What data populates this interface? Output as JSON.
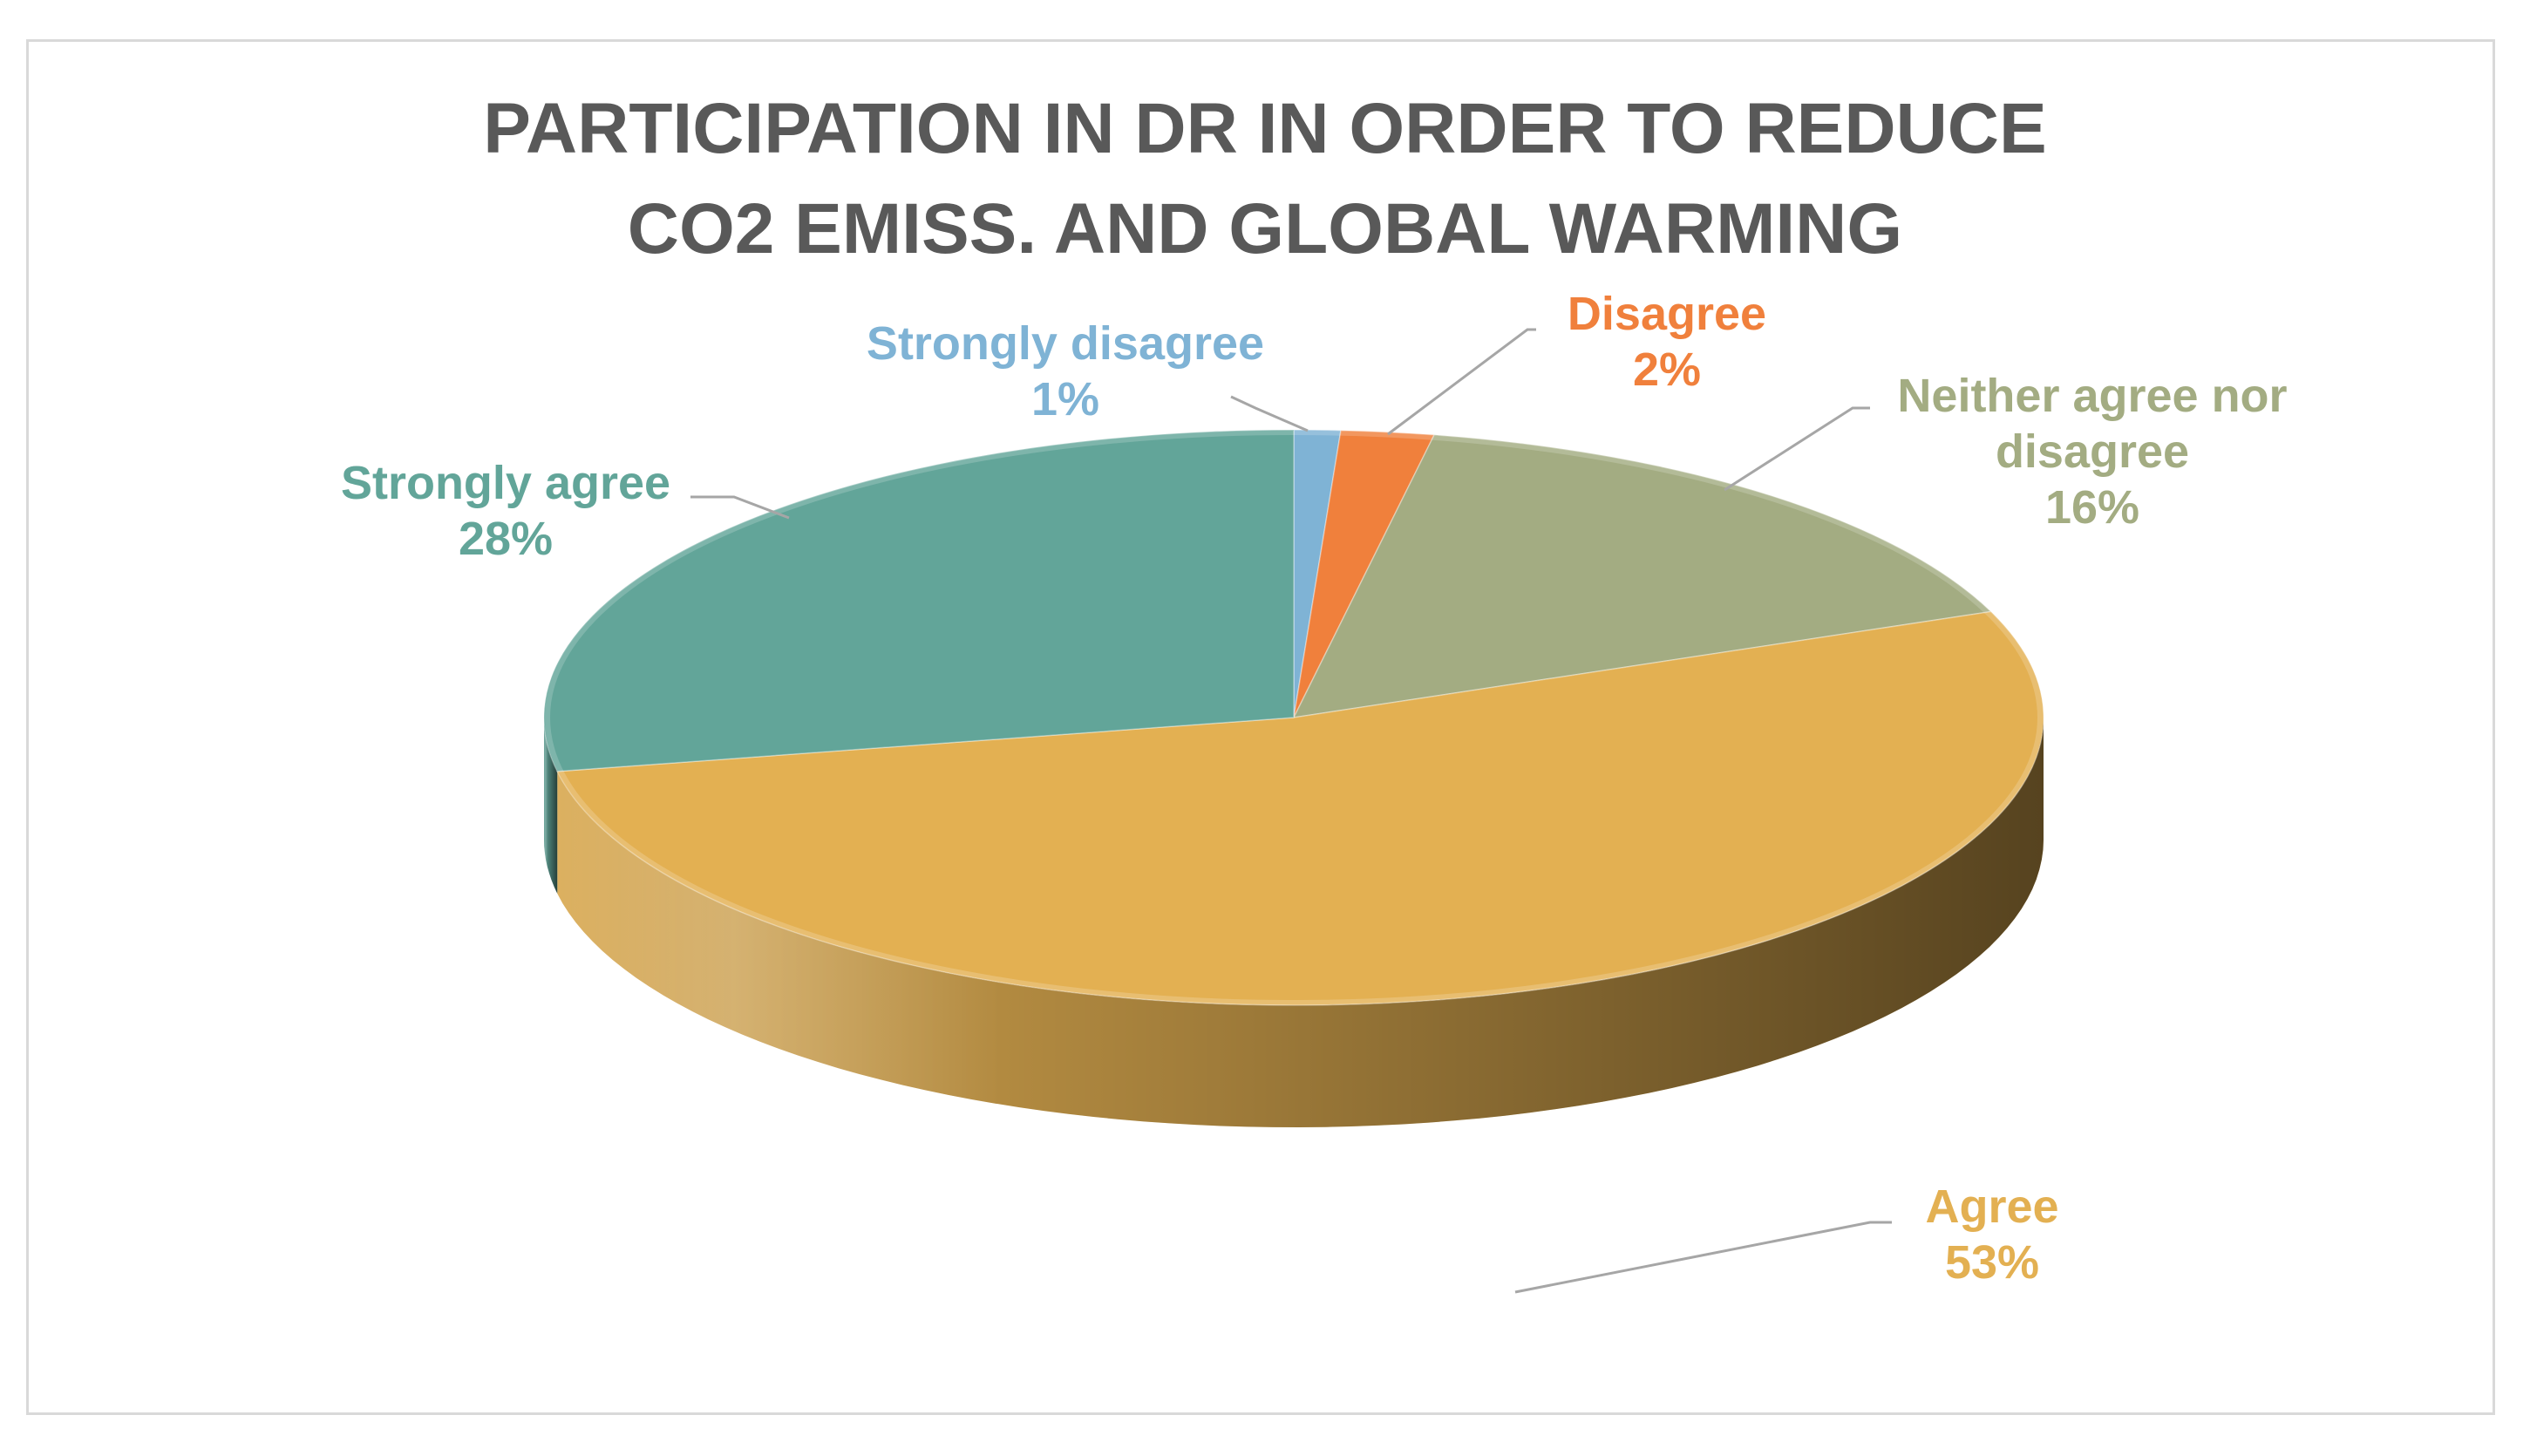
{
  "chart_data": {
    "type": "pie",
    "title_lines": [
      "PARTICIPATION IN DR IN ORDER TO REDUCE",
      "CO2 EMISS. AND GLOBAL WARMING"
    ],
    "categories": [
      "Strongly disagree",
      "Disagree",
      "Neither agree nor disagree",
      "Agree",
      "Strongly agree"
    ],
    "values": [
      1,
      2,
      16,
      53,
      28
    ],
    "unit": "%",
    "colors": [
      "#7fb3d5",
      "#f0803c",
      "#a3ac82",
      "#e3b052",
      "#62a599"
    ],
    "labels": [
      {
        "lines": [
          "Strongly disagree"
        ],
        "pct": "1%"
      },
      {
        "lines": [
          "Disagree"
        ],
        "pct": "2%"
      },
      {
        "lines": [
          "Neither agree nor",
          "disagree"
        ],
        "pct": "16%"
      },
      {
        "lines": [
          "Agree"
        ],
        "pct": "53%"
      },
      {
        "lines": [
          "Strongly agree"
        ],
        "pct": "28%"
      }
    ],
    "legend": "none",
    "style": "3d"
  }
}
